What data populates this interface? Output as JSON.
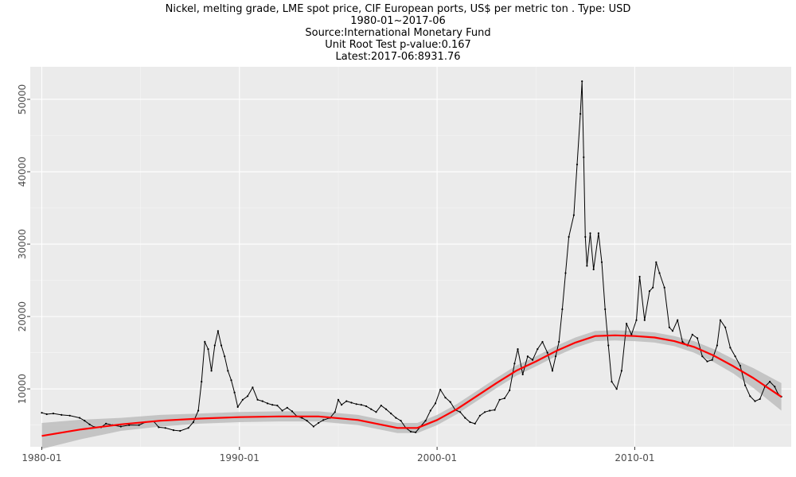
{
  "chart_data": {
    "type": "line",
    "title": "Nickel, melting grade, LME spot price, CIF European ports, US$ per metric ton . Type: USD",
    "subtitle": [
      "1980-01~2017-06",
      "Source:International Monetary Fund",
      "Unit Root Test p-value:0.167",
      "Latest:2017-06:8931.76"
    ],
    "xlabel": "",
    "ylabel": "",
    "x_ticks": [
      "1980-01",
      "1990-01",
      "2000-01",
      "2010-01"
    ],
    "y_ticks": [
      10000,
      20000,
      30000,
      40000,
      50000
    ],
    "xlim": [
      "1979-06",
      "2017-12"
    ],
    "ylim": [
      2000,
      54500
    ],
    "grid": true,
    "legend": "none",
    "series": [
      {
        "role": "price",
        "color": "#000000",
        "points": [
          [
            "1980-01",
            6700
          ],
          [
            "1980-04",
            6500
          ],
          [
            "1980-08",
            6600
          ],
          [
            "1981-01",
            6400
          ],
          [
            "1981-06",
            6300
          ],
          [
            "1981-12",
            6000
          ],
          [
            "1982-03",
            5600
          ],
          [
            "1982-06",
            5100
          ],
          [
            "1982-09",
            4700
          ],
          [
            "1983-01",
            4700
          ],
          [
            "1983-04",
            5200
          ],
          [
            "1983-08",
            5000
          ],
          [
            "1984-01",
            4800
          ],
          [
            "1984-06",
            5000
          ],
          [
            "1984-12",
            5000
          ],
          [
            "1985-04",
            5400
          ],
          [
            "1985-09",
            5500
          ],
          [
            "1985-12",
            4700
          ],
          [
            "1986-04",
            4600
          ],
          [
            "1986-09",
            4300
          ],
          [
            "1987-01",
            4200
          ],
          [
            "1987-06",
            4600
          ],
          [
            "1987-09",
            5400
          ],
          [
            "1987-12",
            7000
          ],
          [
            "1988-02",
            11000
          ],
          [
            "1988-04",
            16500
          ],
          [
            "1988-06",
            15500
          ],
          [
            "1988-08",
            12500
          ],
          [
            "1988-10",
            16000
          ],
          [
            "1988-12",
            18000
          ],
          [
            "1989-02",
            16000
          ],
          [
            "1989-04",
            14500
          ],
          [
            "1989-06",
            12500
          ],
          [
            "1989-08",
            11200
          ],
          [
            "1989-10",
            9500
          ],
          [
            "1989-12",
            7500
          ],
          [
            "1990-03",
            8500
          ],
          [
            "1990-06",
            9000
          ],
          [
            "1990-09",
            10200
          ],
          [
            "1990-12",
            8500
          ],
          [
            "1991-03",
            8300
          ],
          [
            "1991-06",
            8000
          ],
          [
            "1991-09",
            7800
          ],
          [
            "1991-12",
            7700
          ],
          [
            "1992-03",
            7000
          ],
          [
            "1992-06",
            7400
          ],
          [
            "1992-09",
            6900
          ],
          [
            "1992-12",
            6200
          ],
          [
            "1993-03",
            6000
          ],
          [
            "1993-06",
            5600
          ],
          [
            "1993-10",
            4800
          ],
          [
            "1994-01",
            5300
          ],
          [
            "1994-04",
            5700
          ],
          [
            "1994-08",
            6000
          ],
          [
            "1994-11",
            6800
          ],
          [
            "1995-01",
            8500
          ],
          [
            "1995-03",
            7800
          ],
          [
            "1995-06",
            8300
          ],
          [
            "1995-09",
            8100
          ],
          [
            "1995-12",
            7900
          ],
          [
            "1996-03",
            7800
          ],
          [
            "1996-06",
            7600
          ],
          [
            "1996-09",
            7200
          ],
          [
            "1996-12",
            6800
          ],
          [
            "1997-03",
            7700
          ],
          [
            "1997-06",
            7200
          ],
          [
            "1997-09",
            6600
          ],
          [
            "1997-12",
            6000
          ],
          [
            "1998-03",
            5600
          ],
          [
            "1998-06",
            4600
          ],
          [
            "1998-09",
            4100
          ],
          [
            "1998-12",
            4000
          ],
          [
            "1999-03",
            4800
          ],
          [
            "1999-06",
            5600
          ],
          [
            "1999-09",
            7000
          ],
          [
            "1999-12",
            8000
          ],
          [
            "2000-03",
            9900
          ],
          [
            "2000-06",
            8800
          ],
          [
            "2000-09",
            8200
          ],
          [
            "2000-12",
            7100
          ],
          [
            "2001-03",
            6800
          ],
          [
            "2001-06",
            6000
          ],
          [
            "2001-09",
            5400
          ],
          [
            "2001-12",
            5200
          ],
          [
            "2002-03",
            6300
          ],
          [
            "2002-06",
            6800
          ],
          [
            "2002-09",
            7000
          ],
          [
            "2002-12",
            7100
          ],
          [
            "2003-03",
            8500
          ],
          [
            "2003-06",
            8700
          ],
          [
            "2003-09",
            9800
          ],
          [
            "2003-12",
            13500
          ],
          [
            "2004-02",
            15500
          ],
          [
            "2004-05",
            12000
          ],
          [
            "2004-08",
            14500
          ],
          [
            "2004-11",
            14000
          ],
          [
            "2005-02",
            15500
          ],
          [
            "2005-05",
            16500
          ],
          [
            "2005-08",
            15000
          ],
          [
            "2005-11",
            12500
          ],
          [
            "2006-01",
            14500
          ],
          [
            "2006-03",
            16500
          ],
          [
            "2006-05",
            21000
          ],
          [
            "2006-07",
            26000
          ],
          [
            "2006-09",
            31000
          ],
          [
            "2006-12",
            34000
          ],
          [
            "2007-02",
            41000
          ],
          [
            "2007-04",
            48000
          ],
          [
            "2007-05",
            52500
          ],
          [
            "2007-06",
            42000
          ],
          [
            "2007-07",
            31000
          ],
          [
            "2007-08",
            27000
          ],
          [
            "2007-10",
            31500
          ],
          [
            "2007-12",
            26500
          ],
          [
            "2008-03",
            31500
          ],
          [
            "2008-05",
            27500
          ],
          [
            "2008-07",
            21000
          ],
          [
            "2008-09",
            16000
          ],
          [
            "2008-11",
            11000
          ],
          [
            "2009-02",
            10000
          ],
          [
            "2009-05",
            12500
          ],
          [
            "2009-08",
            19000
          ],
          [
            "2009-11",
            17500
          ],
          [
            "2010-02",
            19500
          ],
          [
            "2010-04",
            25500
          ],
          [
            "2010-07",
            19500
          ],
          [
            "2010-10",
            23500
          ],
          [
            "2010-12",
            24000
          ],
          [
            "2011-02",
            27500
          ],
          [
            "2011-04",
            26000
          ],
          [
            "2011-07",
            24000
          ],
          [
            "2011-10",
            18500
          ],
          [
            "2011-12",
            18000
          ],
          [
            "2012-03",
            19500
          ],
          [
            "2012-06",
            16500
          ],
          [
            "2012-09",
            16000
          ],
          [
            "2012-12",
            17500
          ],
          [
            "2013-03",
            17000
          ],
          [
            "2013-06",
            14500
          ],
          [
            "2013-09",
            13800
          ],
          [
            "2013-12",
            14000
          ],
          [
            "2014-03",
            16000
          ],
          [
            "2014-05",
            19500
          ],
          [
            "2014-08",
            18500
          ],
          [
            "2014-11",
            15700
          ],
          [
            "2015-02",
            14500
          ],
          [
            "2015-05",
            13200
          ],
          [
            "2015-08",
            10500
          ],
          [
            "2015-11",
            9000
          ],
          [
            "2016-02",
            8300
          ],
          [
            "2016-05",
            8600
          ],
          [
            "2016-08",
            10300
          ],
          [
            "2016-11",
            11000
          ],
          [
            "2017-02",
            10300
          ],
          [
            "2017-04",
            9300
          ],
          [
            "2017-06",
            8931.76
          ]
        ]
      },
      {
        "role": "smooth",
        "color": "#ff0000",
        "band_color": "#bdbdbd",
        "points": [
          [
            "1980-01",
            3500
          ],
          [
            "1982-01",
            4400
          ],
          [
            "1984-01",
            5100
          ],
          [
            "1986-01",
            5600
          ],
          [
            "1988-01",
            5900
          ],
          [
            "1990-01",
            6100
          ],
          [
            "1992-01",
            6200
          ],
          [
            "1994-01",
            6200
          ],
          [
            "1996-01",
            5700
          ],
          [
            "1998-01",
            4600
          ],
          [
            "1999-01",
            4600
          ],
          [
            "2000-01",
            5700
          ],
          [
            "2001-01",
            7200
          ],
          [
            "2002-01",
            9000
          ],
          [
            "2003-01",
            10800
          ],
          [
            "2004-01",
            12500
          ],
          [
            "2005-01",
            13800
          ],
          [
            "2006-01",
            15200
          ],
          [
            "2007-01",
            16400
          ],
          [
            "2008-01",
            17300
          ],
          [
            "2009-01",
            17400
          ],
          [
            "2010-01",
            17300
          ],
          [
            "2011-01",
            17100
          ],
          [
            "2012-01",
            16600
          ],
          [
            "2013-01",
            15800
          ],
          [
            "2014-01",
            14600
          ],
          [
            "2015-01",
            13100
          ],
          [
            "2016-01",
            11500
          ],
          [
            "2017-06",
            8900
          ]
        ],
        "band_halfwidth": [
          [
            "1980-01",
            1800
          ],
          [
            "1984-01",
            900
          ],
          [
            "1988-01",
            700
          ],
          [
            "1992-01",
            700
          ],
          [
            "1996-01",
            700
          ],
          [
            "2000-01",
            700
          ],
          [
            "2004-01",
            700
          ],
          [
            "2008-01",
            700
          ],
          [
            "2012-01",
            700
          ],
          [
            "2015-01",
            1000
          ],
          [
            "2017-06",
            1900
          ]
        ]
      }
    ]
  }
}
